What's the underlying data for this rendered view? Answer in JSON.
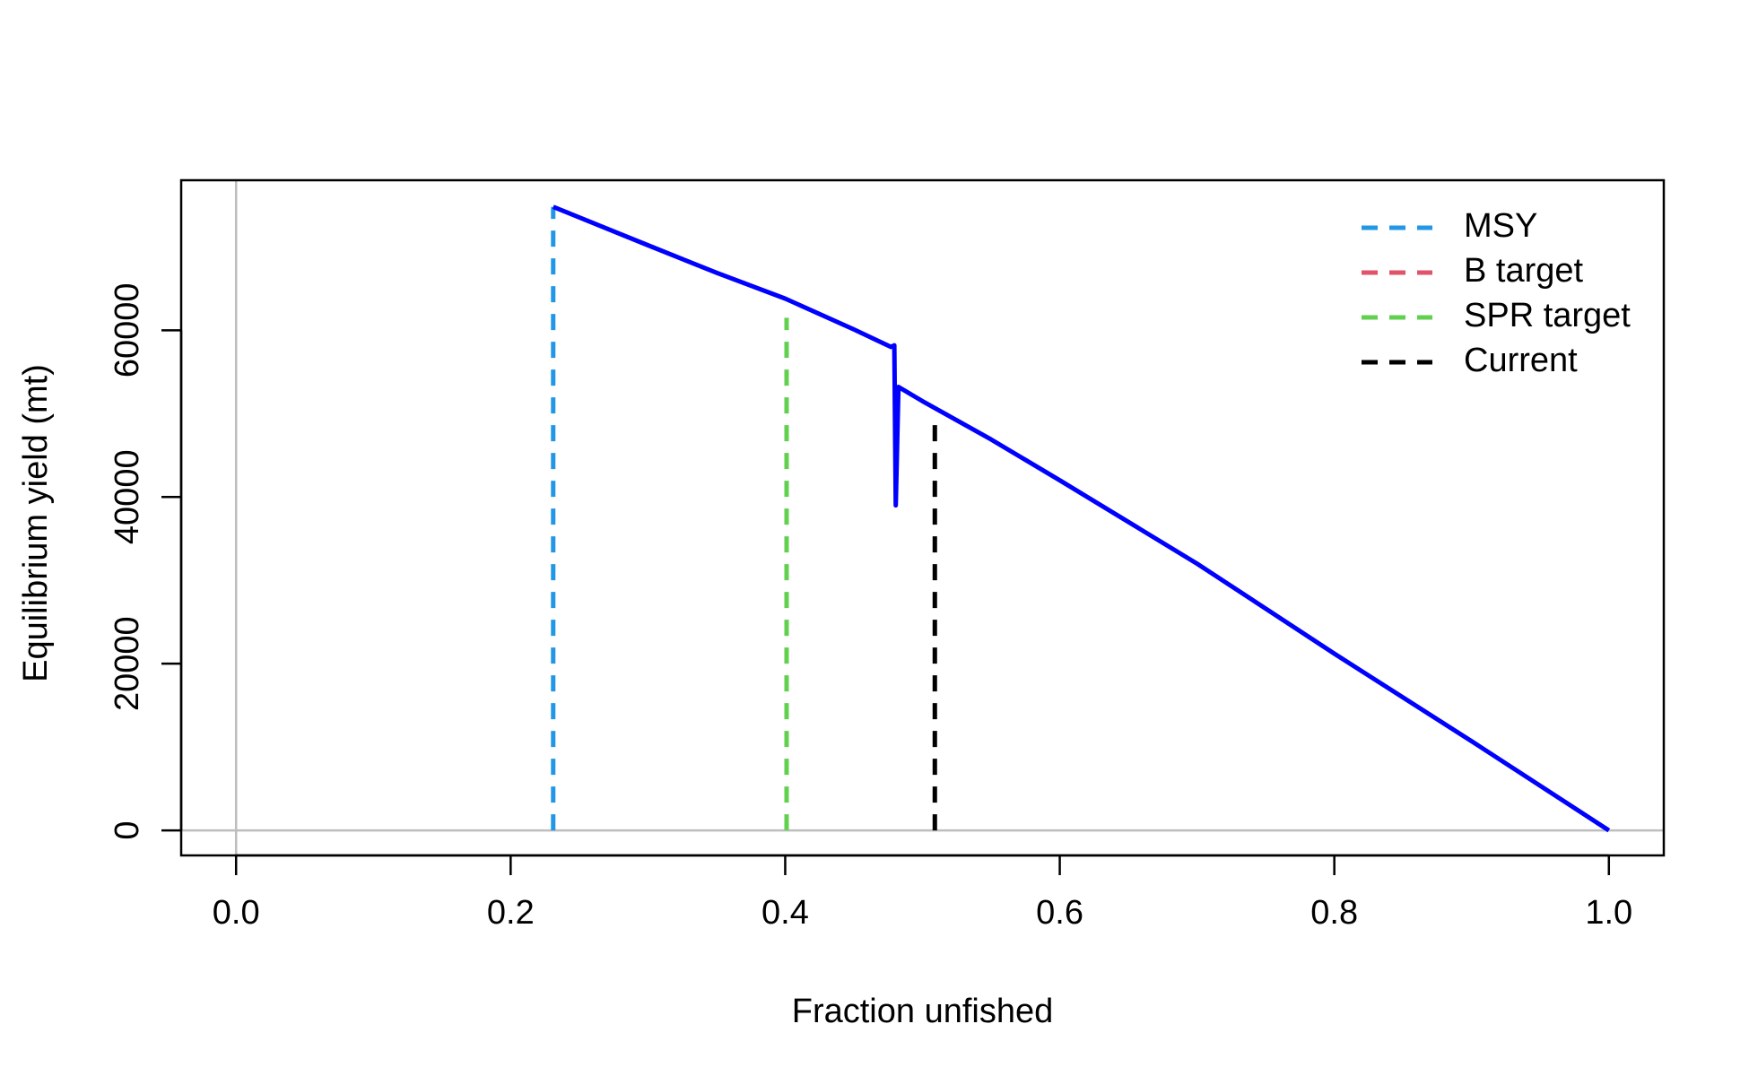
{
  "chart_data": {
    "type": "line",
    "title": "",
    "xlabel": "Fraction unfished",
    "ylabel": "Equilibrium yield (mt)",
    "xlim": [
      -0.04,
      1.04
    ],
    "ylim": [
      -3000,
      78000
    ],
    "x_ticks": [
      0.0,
      0.2,
      0.4,
      0.6,
      0.8,
      1.0
    ],
    "x_tick_labels": [
      "0.0",
      "0.2",
      "0.4",
      "0.6",
      "0.8",
      "1.0"
    ],
    "y_ticks": [
      0,
      20000,
      40000,
      60000
    ],
    "y_tick_labels": [
      "0",
      "20000",
      "40000",
      "60000"
    ],
    "reference_lines": {
      "horizontal_y": 0,
      "vertical_x": 0,
      "color": "#bebebe"
    },
    "series": [
      {
        "color": "#0000ff",
        "points": [
          [
            0.231,
            74800
          ],
          [
            0.3,
            70200
          ],
          [
            0.35,
            66900
          ],
          [
            0.4,
            63800
          ],
          [
            0.45,
            60100
          ],
          [
            0.477,
            58000
          ],
          [
            0.4795,
            58200
          ],
          [
            0.4805,
            39000
          ],
          [
            0.4825,
            53200
          ],
          [
            0.5,
            51500
          ],
          [
            0.55,
            46900
          ],
          [
            0.6,
            42000
          ],
          [
            0.7,
            32000
          ],
          [
            0.8,
            21200
          ],
          [
            0.9,
            10700
          ],
          [
            1.0,
            0
          ]
        ]
      }
    ],
    "vlines": [
      {
        "label": "MSY",
        "x": 0.231,
        "y": 74800,
        "color": "#2297e6"
      },
      {
        "label": "SPR target",
        "x": 0.401,
        "y": 61500,
        "color": "#61d04f"
      },
      {
        "label": "Current",
        "x": 0.509,
        "y": 50000,
        "color": "#000000"
      }
    ],
    "legend": {
      "position": "top-right",
      "entries": [
        {
          "label": "MSY",
          "color": "#2297e6"
        },
        {
          "label": "B target",
          "color": "#df536b"
        },
        {
          "label": "SPR target",
          "color": "#61d04f"
        },
        {
          "label": "Current",
          "color": "#000000"
        }
      ]
    }
  }
}
